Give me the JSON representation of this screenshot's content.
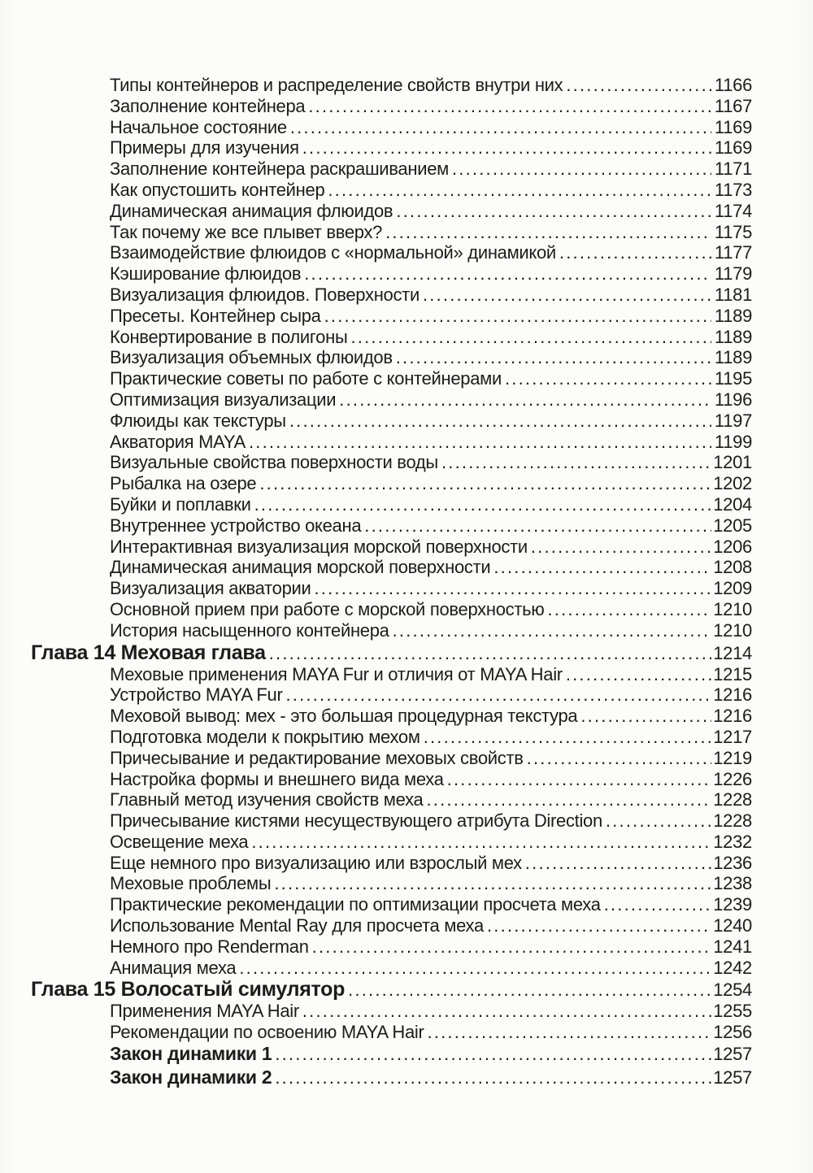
{
  "page": {
    "kind_label": "table-of-contents-scan",
    "colors": {
      "background": "#fcfcfb",
      "text": "#1c1c1c"
    }
  },
  "toc": {
    "rows": [
      {
        "type": "entry",
        "label": "Типы контейнеров и распределение свойств внутри них",
        "page": "1166"
      },
      {
        "type": "entry",
        "label": "Заполнение контейнера",
        "page": "1167"
      },
      {
        "type": "entry",
        "label": "Начальное состояние",
        "page": "1169"
      },
      {
        "type": "entry",
        "label": "Примеры для изучения",
        "page": "1169"
      },
      {
        "type": "entry",
        "label": "Заполнение контейнера раскрашиванием",
        "page": "1171"
      },
      {
        "type": "entry",
        "label": "Как опустошить контейнер",
        "page": "1173"
      },
      {
        "type": "entry",
        "label": "Динамическая анимация флюидов",
        "page": "1174"
      },
      {
        "type": "entry",
        "label": "Так почему же все плывет вверх?",
        "page": "1175"
      },
      {
        "type": "entry",
        "label": "Взаимодействие флюидов с «нормальной» динамикой",
        "page": "1177"
      },
      {
        "type": "entry",
        "label": "Кэширование флюидов",
        "page": "1179"
      },
      {
        "type": "entry",
        "label": "Визуализация флюидов. Поверхности",
        "page": "1181"
      },
      {
        "type": "entry",
        "label": "Пресеты. Контейнер сыра",
        "page": "1189"
      },
      {
        "type": "entry",
        "label": "Конвертирование в полигоны",
        "page": "1189"
      },
      {
        "type": "entry",
        "label": "Визуализация объемных флюидов",
        "page": "1189"
      },
      {
        "type": "entry",
        "label": "Практические советы по работе с контейнерами",
        "page": "1195"
      },
      {
        "type": "entry",
        "label": "Оптимизация визуализации",
        "page": "1196"
      },
      {
        "type": "entry",
        "label": "Флюиды как текстуры",
        "page": "1197"
      },
      {
        "type": "entry",
        "label": "Акватория MAYA",
        "page": "1199"
      },
      {
        "type": "entry",
        "label": "Визуальные свойства поверхности воды",
        "page": "1201"
      },
      {
        "type": "entry",
        "label": "Рыбалка на озере",
        "page": "1202"
      },
      {
        "type": "entry",
        "label": "Буйки и поплавки",
        "page": "1204"
      },
      {
        "type": "entry",
        "label": "Внутреннее устройство океана",
        "page": "1205"
      },
      {
        "type": "entry",
        "label": "Интерактивная визуализация морской поверхности",
        "page": "1206"
      },
      {
        "type": "entry",
        "label": "Динамическая анимация морской поверхности",
        "page": "1208"
      },
      {
        "type": "entry",
        "label": "Визуализация акватории",
        "page": "1209"
      },
      {
        "type": "entry",
        "label": "Основной прием при работе с морской поверхностью",
        "page": "1210"
      },
      {
        "type": "entry",
        "label": "История насыщенного контейнера",
        "page": "1210"
      },
      {
        "type": "chapter",
        "label": "Глава 14 Меховая глава",
        "page": "1214"
      },
      {
        "type": "entry",
        "label": "Меховые применения MAYA Fur и отличия от MAYA Hair",
        "page": "1215"
      },
      {
        "type": "entry",
        "label": "Устройство MAYA Fur",
        "page": "1216"
      },
      {
        "type": "entry",
        "label": "Меховой вывод: мех - это большая процедурная текстура",
        "page": "1216"
      },
      {
        "type": "entry",
        "label": "Подготовка модели к покрытию мехом",
        "page": "1217"
      },
      {
        "type": "entry",
        "label": "Причесывание и редактирование меховых свойств",
        "page": "1219"
      },
      {
        "type": "entry",
        "label": "Настройка формы и внешнего вида меха",
        "page": "1226"
      },
      {
        "type": "entry",
        "label": "Главный метод изучения свойств меха",
        "page": "1228"
      },
      {
        "type": "entry",
        "label": "Причесывание кистями несуществующего атрибута Direction",
        "page": "1228"
      },
      {
        "type": "entry",
        "label": "Освещение меха",
        "page": "1232"
      },
      {
        "type": "entry",
        "label": "Еще немного про визуализацию или взрослый мех",
        "page": "1236"
      },
      {
        "type": "entry",
        "label": "Меховые проблемы",
        "page": "1238"
      },
      {
        "type": "entry",
        "label": "Практические рекомендации по оптимизации просчета меха",
        "page": "1239"
      },
      {
        "type": "entry",
        "label": "Использование Mental Ray для просчета меха",
        "page": "1240"
      },
      {
        "type": "entry",
        "label": "Немного про Renderman",
        "page": "1241"
      },
      {
        "type": "entry",
        "label": "Анимация меха",
        "page": "1242"
      },
      {
        "type": "chapter",
        "label": "Глава 15 Волосатый симулятор",
        "page": "1254"
      },
      {
        "type": "entry",
        "label": "Применения MAYA Hair",
        "page": "1255"
      },
      {
        "type": "entry",
        "label": "Рекомендации по освоению MAYA Hair",
        "page": "1256"
      },
      {
        "type": "bold",
        "label": "Закон динамики 1",
        "page": "1257"
      },
      {
        "type": "bold",
        "label": "Закон динамики 2",
        "page": "1257"
      }
    ]
  }
}
